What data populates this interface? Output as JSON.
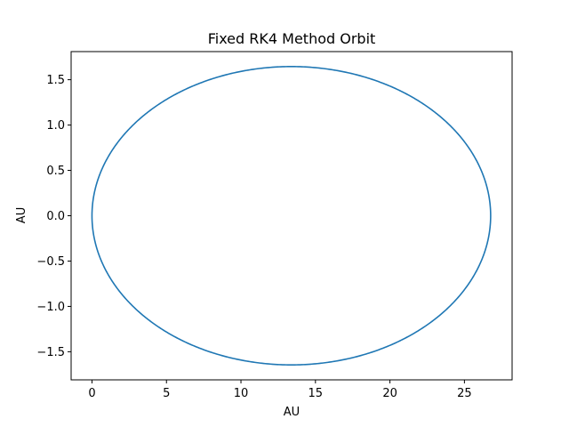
{
  "chart_data": {
    "type": "line",
    "title": "Fixed RK4 Method Orbit",
    "xlabel": "AU",
    "ylabel": "AU",
    "xlim": [
      -1.4,
      28.2
    ],
    "ylim": [
      -1.81,
      1.81
    ],
    "xticks": [
      0,
      5,
      10,
      15,
      20,
      25
    ],
    "xtick_labels": [
      "0",
      "5",
      "10",
      "15",
      "20",
      "25"
    ],
    "yticks": [
      -1.5,
      -1.0,
      -0.5,
      0.0,
      0.5,
      1.0,
      1.5
    ],
    "ytick_labels": [
      "−1.5",
      "−1.0",
      "−0.5",
      "0.0",
      "0.5",
      "1.0",
      "1.5"
    ],
    "grid": false,
    "legend": "none",
    "series": [
      {
        "color": "#1f77b4",
        "shape": "ellipse",
        "center": [
          13.38,
          0.0
        ],
        "semi_major_axis": 13.38,
        "semi_minor_axis": 1.645,
        "x_range": [
          0.0,
          26.76
        ],
        "y_range": [
          -1.645,
          1.645
        ]
      }
    ]
  }
}
